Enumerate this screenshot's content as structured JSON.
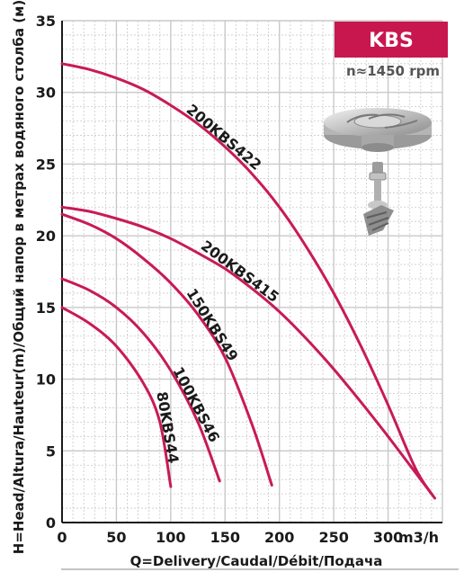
{
  "chart_data": {
    "type": "line",
    "badge": "KBS",
    "speed": "n≈1450 rpm",
    "xlabel": "Q=Delivery/Caudal/Débit/Подача",
    "ylabel": "H=Head/Altura/Hauteur(m)/Общий напор в метрах водяного столба (м)",
    "x_unit": "m3/h",
    "xlim": [
      0,
      350
    ],
    "ylim": [
      0,
      35
    ],
    "x_ticks": [
      0,
      50,
      100,
      150,
      200,
      250,
      300
    ],
    "y_ticks": [
      0,
      5,
      10,
      15,
      20,
      25,
      30,
      35
    ],
    "grid": true,
    "series": [
      {
        "name": "200KBS422",
        "x": [
          0,
          25,
          50,
          75,
          100,
          125,
          150,
          175,
          200,
          225,
          250,
          275,
          300,
          325,
          340
        ],
        "y": [
          32,
          31.6,
          31,
          30.2,
          29.1,
          27.8,
          26.2,
          24.3,
          22,
          19.2,
          16,
          12.3,
          8.2,
          3.8,
          2
        ]
      },
      {
        "name": "200KBS415",
        "x": [
          0,
          25,
          50,
          75,
          100,
          125,
          150,
          175,
          200,
          225,
          250,
          275,
          300,
          325,
          343
        ],
        "y": [
          22,
          21.7,
          21.2,
          20.6,
          19.8,
          18.8,
          17.7,
          16.3,
          14.7,
          12.8,
          10.7,
          8.4,
          6,
          3.5,
          1.7
        ]
      },
      {
        "name": "150KBS49",
        "x": [
          0,
          25,
          50,
          75,
          100,
          125,
          150,
          175,
          193
        ],
        "y": [
          21.5,
          20.8,
          19.8,
          18.4,
          16.7,
          14.5,
          11.5,
          6.8,
          2.6
        ]
      },
      {
        "name": "100KBS46",
        "x": [
          0,
          25,
          50,
          75,
          100,
          125,
          145
        ],
        "y": [
          17,
          16.2,
          15,
          13.2,
          10.6,
          7,
          2.9
        ]
      },
      {
        "name": "80KBS44",
        "x": [
          0,
          25,
          50,
          75,
          90,
          100
        ],
        "y": [
          15,
          13.9,
          12.3,
          9.7,
          7,
          2.5
        ]
      }
    ],
    "colors": {
      "curve": "#c81a58",
      "grid": "#c9c9c9",
      "badge": "#c8174e",
      "axis": "#1a1a1a"
    }
  },
  "images": {
    "impeller": "impeller-icon",
    "shaft": "shaft-icon"
  }
}
